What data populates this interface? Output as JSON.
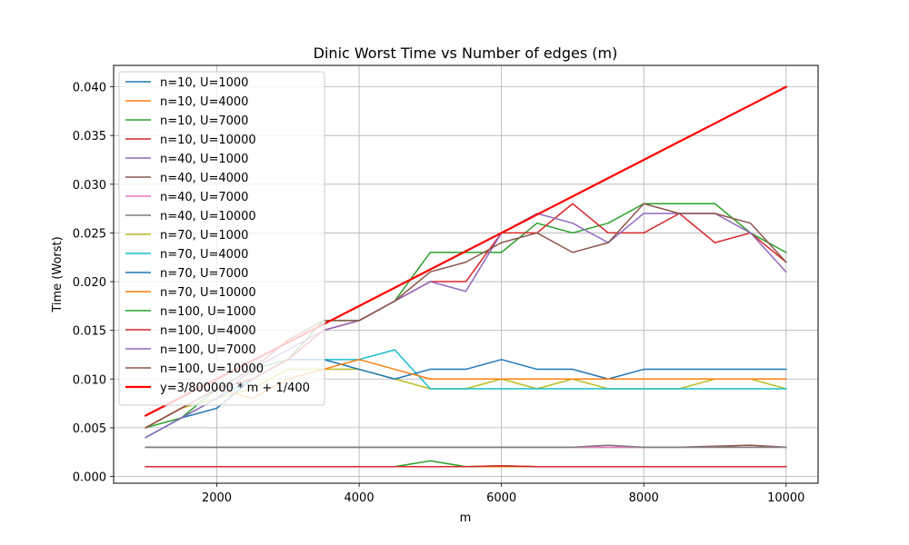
{
  "chart_data": {
    "type": "line",
    "title": "Dinic Worst Time vs Number of edges (m)",
    "xlabel": "m",
    "ylabel": "Time (Worst)",
    "xlim": [
      550,
      10450
    ],
    "ylim": [
      -0.0007,
      0.0422
    ],
    "xticks": [
      2000,
      4000,
      6000,
      8000,
      10000
    ],
    "xtick_labels": [
      "2000",
      "4000",
      "6000",
      "8000",
      "10000"
    ],
    "yticks": [
      0.0,
      0.005,
      0.01,
      0.015,
      0.02,
      0.025,
      0.03,
      0.035,
      0.04
    ],
    "ytick_labels": [
      "0.000",
      "0.005",
      "0.010",
      "0.015",
      "0.020",
      "0.025",
      "0.030",
      "0.035",
      "0.040"
    ],
    "grid": true,
    "legend_position": "upper-left",
    "x": [
      1000,
      1500,
      2000,
      2500,
      3000,
      3500,
      4000,
      4500,
      5000,
      5500,
      6000,
      6500,
      7000,
      7500,
      8000,
      8500,
      9000,
      9500,
      10000
    ],
    "series": [
      {
        "name": "n=10, U=1000",
        "color": "#1f77b4",
        "width": 1.5,
        "values": [
          0.001,
          0.001,
          0.001,
          0.001,
          0.001,
          0.001,
          0.001,
          0.001,
          0.001,
          0.001,
          0.001,
          0.001,
          0.001,
          0.001,
          0.001,
          0.001,
          0.001,
          0.001,
          0.001
        ]
      },
      {
        "name": "n=10, U=4000",
        "color": "#ff7f0e",
        "width": 1.5,
        "values": [
          0.001,
          0.001,
          0.001,
          0.001,
          0.001,
          0.001,
          0.001,
          0.001,
          0.001,
          0.001,
          0.001,
          0.001,
          0.001,
          0.001,
          0.001,
          0.001,
          0.001,
          0.001,
          0.001
        ]
      },
      {
        "name": "n=10, U=7000",
        "color": "#2ca02c",
        "width": 1.5,
        "values": [
          0.001,
          0.001,
          0.001,
          0.001,
          0.001,
          0.001,
          0.001,
          0.001,
          0.0016,
          0.001,
          0.0011,
          0.001,
          0.001,
          0.001,
          0.001,
          0.001,
          0.001,
          0.001,
          0.001
        ]
      },
      {
        "name": "n=10, U=10000",
        "color": "#d62728",
        "width": 1.5,
        "values": [
          0.001,
          0.001,
          0.001,
          0.001,
          0.001,
          0.001,
          0.001,
          0.001,
          0.001,
          0.001,
          0.0011,
          0.001,
          0.001,
          0.001,
          0.001,
          0.001,
          0.001,
          0.001,
          0.001
        ]
      },
      {
        "name": "n=40, U=1000",
        "color": "#9467bd",
        "width": 1.5,
        "values": [
          0.003,
          0.003,
          0.003,
          0.003,
          0.003,
          0.003,
          0.003,
          0.003,
          0.003,
          0.003,
          0.003,
          0.003,
          0.003,
          0.003,
          0.003,
          0.003,
          0.003,
          0.003,
          0.003
        ]
      },
      {
        "name": "n=40, U=4000",
        "color": "#8c564b",
        "width": 1.5,
        "values": [
          0.003,
          0.003,
          0.003,
          0.003,
          0.003,
          0.003,
          0.003,
          0.003,
          0.003,
          0.003,
          0.003,
          0.003,
          0.003,
          0.003,
          0.003,
          0.003,
          0.0031,
          0.0032,
          0.003
        ]
      },
      {
        "name": "n=40, U=7000",
        "color": "#e377c2",
        "width": 1.5,
        "values": [
          0.003,
          0.003,
          0.003,
          0.003,
          0.003,
          0.003,
          0.003,
          0.003,
          0.003,
          0.003,
          0.003,
          0.003,
          0.003,
          0.003,
          0.003,
          0.003,
          0.003,
          0.003,
          0.003
        ]
      },
      {
        "name": "n=40, U=10000",
        "color": "#7f7f7f",
        "width": 1.5,
        "values": [
          0.003,
          0.003,
          0.003,
          0.003,
          0.003,
          0.003,
          0.003,
          0.003,
          0.003,
          0.003,
          0.003,
          0.003,
          0.003,
          0.0032,
          0.003,
          0.003,
          0.003,
          0.003,
          0.003
        ]
      },
      {
        "name": "n=70, U=1000",
        "color": "#bcbd22",
        "width": 1.5,
        "values": [
          0.005,
          0.007,
          0.008,
          0.009,
          0.011,
          0.011,
          0.011,
          0.01,
          0.009,
          0.009,
          0.01,
          0.009,
          0.01,
          0.009,
          0.009,
          0.009,
          0.01,
          0.01,
          0.009
        ]
      },
      {
        "name": "n=70, U=4000",
        "color": "#17becf",
        "width": 1.5,
        "values": [
          0.004,
          0.006,
          0.008,
          0.01,
          0.012,
          0.012,
          0.012,
          0.013,
          0.009,
          0.009,
          0.009,
          0.009,
          0.009,
          0.009,
          0.009,
          0.009,
          0.009,
          0.009,
          0.009
        ]
      },
      {
        "name": "n=70, U=7000",
        "color": "#1f77b4",
        "width": 1.5,
        "values": [
          0.004,
          0.006,
          0.007,
          0.01,
          0.012,
          0.012,
          0.011,
          0.01,
          0.011,
          0.011,
          0.012,
          0.011,
          0.011,
          0.01,
          0.011,
          0.011,
          0.011,
          0.011,
          0.011
        ]
      },
      {
        "name": "n=70, U=10000",
        "color": "#ff7f0e",
        "width": 1.5,
        "values": [
          0.005,
          0.007,
          0.009,
          0.008,
          0.01,
          0.011,
          0.012,
          0.011,
          0.01,
          0.01,
          0.01,
          0.01,
          0.01,
          0.01,
          0.01,
          0.01,
          0.01,
          0.01,
          0.01
        ]
      },
      {
        "name": "n=100, U=1000",
        "color": "#2ca02c",
        "width": 1.5,
        "values": [
          0.005,
          0.006,
          0.009,
          0.011,
          0.012,
          0.016,
          0.016,
          0.018,
          0.023,
          0.023,
          0.023,
          0.026,
          0.025,
          0.026,
          0.028,
          0.028,
          0.028,
          0.025,
          0.023
        ]
      },
      {
        "name": "n=100, U=4000",
        "color": "#d62728",
        "width": 1.5,
        "values": [
          0.005,
          0.007,
          0.009,
          0.01,
          0.012,
          0.015,
          0.016,
          0.018,
          0.02,
          0.02,
          0.025,
          0.025,
          0.028,
          0.025,
          0.025,
          0.027,
          0.024,
          0.025,
          0.022
        ]
      },
      {
        "name": "n=100, U=7000",
        "color": "#9467bd",
        "width": 1.5,
        "values": [
          0.004,
          0.006,
          0.008,
          0.011,
          0.013,
          0.015,
          0.016,
          0.018,
          0.02,
          0.019,
          0.025,
          0.027,
          0.026,
          0.024,
          0.027,
          0.027,
          0.027,
          0.025,
          0.021
        ]
      },
      {
        "name": "n=100, U=10000",
        "color": "#8c564b",
        "width": 1.5,
        "values": [
          0.005,
          0.007,
          0.009,
          0.011,
          0.014,
          0.016,
          0.016,
          0.018,
          0.021,
          0.022,
          0.024,
          0.025,
          0.023,
          0.024,
          0.028,
          0.027,
          0.027,
          0.026,
          0.022
        ]
      },
      {
        "name": "y=3/800000 * m + 1/400",
        "color": "#ff0000",
        "width": 2.2,
        "values": [
          0.00625,
          0.008125,
          0.01,
          0.011875,
          0.01375,
          0.015625,
          0.0175,
          0.019375,
          0.02125,
          0.023125,
          0.025,
          0.026875,
          0.02875,
          0.030625,
          0.0325,
          0.034375,
          0.03625,
          0.038125,
          0.04
        ]
      }
    ]
  }
}
